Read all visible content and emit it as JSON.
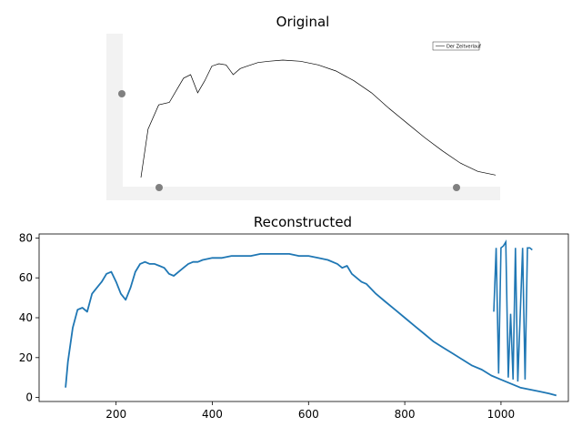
{
  "chart_data": [
    {
      "type": "line",
      "title": "Original",
      "legend": {
        "label": "Der Zeitverlauf",
        "placement": "top-right"
      },
      "grid": false,
      "axes_ticks": false,
      "colors": {
        "line": "#000000",
        "axis_band": "#f2f2f2",
        "marker": "#808080"
      },
      "series": [
        {
          "name": "Der Zeitverlauf",
          "x": [
            0.0,
            0.02,
            0.05,
            0.08,
            0.1,
            0.12,
            0.14,
            0.16,
            0.18,
            0.2,
            0.22,
            0.24,
            0.26,
            0.28,
            0.3,
            0.33,
            0.36,
            0.4,
            0.45,
            0.5,
            0.55,
            0.6,
            0.65,
            0.7,
            0.75,
            0.8,
            0.85,
            0.9,
            0.95,
            1.0
          ],
          "y": [
            0.0,
            0.4,
            0.6,
            0.62,
            0.72,
            0.82,
            0.85,
            0.7,
            0.8,
            0.92,
            0.94,
            0.93,
            0.85,
            0.9,
            0.92,
            0.95,
            0.96,
            0.97,
            0.96,
            0.93,
            0.88,
            0.8,
            0.7,
            0.57,
            0.45,
            0.33,
            0.22,
            0.12,
            0.05,
            0.02
          ]
        }
      ]
    },
    {
      "type": "line",
      "title": "Reconstructed",
      "xlim": [
        40,
        1140
      ],
      "ylim": [
        -2,
        82
      ],
      "xticks": [
        200,
        400,
        600,
        800,
        1000
      ],
      "yticks": [
        0,
        20,
        40,
        60,
        80
      ],
      "grid": false,
      "colors": {
        "line": "#1f77b4"
      },
      "series": [
        {
          "x": [
            95,
            100,
            110,
            120,
            130,
            140,
            150,
            160,
            170,
            180,
            190,
            200,
            210,
            220,
            230,
            240,
            250,
            260,
            270,
            280,
            290,
            300,
            310,
            320,
            330,
            340,
            350,
            360,
            370,
            380,
            400,
            420,
            440,
            460,
            480,
            500,
            520,
            540,
            560,
            580,
            600,
            620,
            640,
            660,
            670,
            680,
            690,
            700,
            710,
            720,
            740,
            760,
            780,
            800,
            820,
            840,
            860,
            880,
            900,
            920,
            940,
            960,
            980,
            1000,
            1020,
            1040,
            1060,
            1080,
            1100,
            1115
          ],
          "y": [
            5,
            18,
            35,
            44,
            45,
            43,
            52,
            55,
            58,
            62,
            63,
            58,
            52,
            49,
            55,
            63,
            67,
            68,
            67,
            67,
            66,
            65,
            62,
            61,
            63,
            65,
            67,
            68,
            68,
            69,
            70,
            70,
            71,
            71,
            71,
            72,
            72,
            72,
            72,
            71,
            71,
            70,
            69,
            67,
            65,
            66,
            62,
            60,
            58,
            57,
            52,
            48,
            44,
            40,
            36,
            32,
            28,
            25,
            22,
            19,
            16,
            14,
            11,
            9,
            7,
            5,
            4,
            3,
            2,
            1
          ]
        }
      ],
      "spikes": {
        "x": [
          985,
          990,
          995,
          1000,
          1005,
          1010,
          1015,
          1020,
          1025,
          1030,
          1035,
          1040,
          1045,
          1050,
          1055,
          1060,
          1065
        ],
        "y": [
          43,
          75,
          12,
          75,
          76,
          78,
          10,
          42,
          9,
          75,
          8,
          42,
          75,
          9,
          75,
          75,
          74
        ]
      }
    }
  ]
}
